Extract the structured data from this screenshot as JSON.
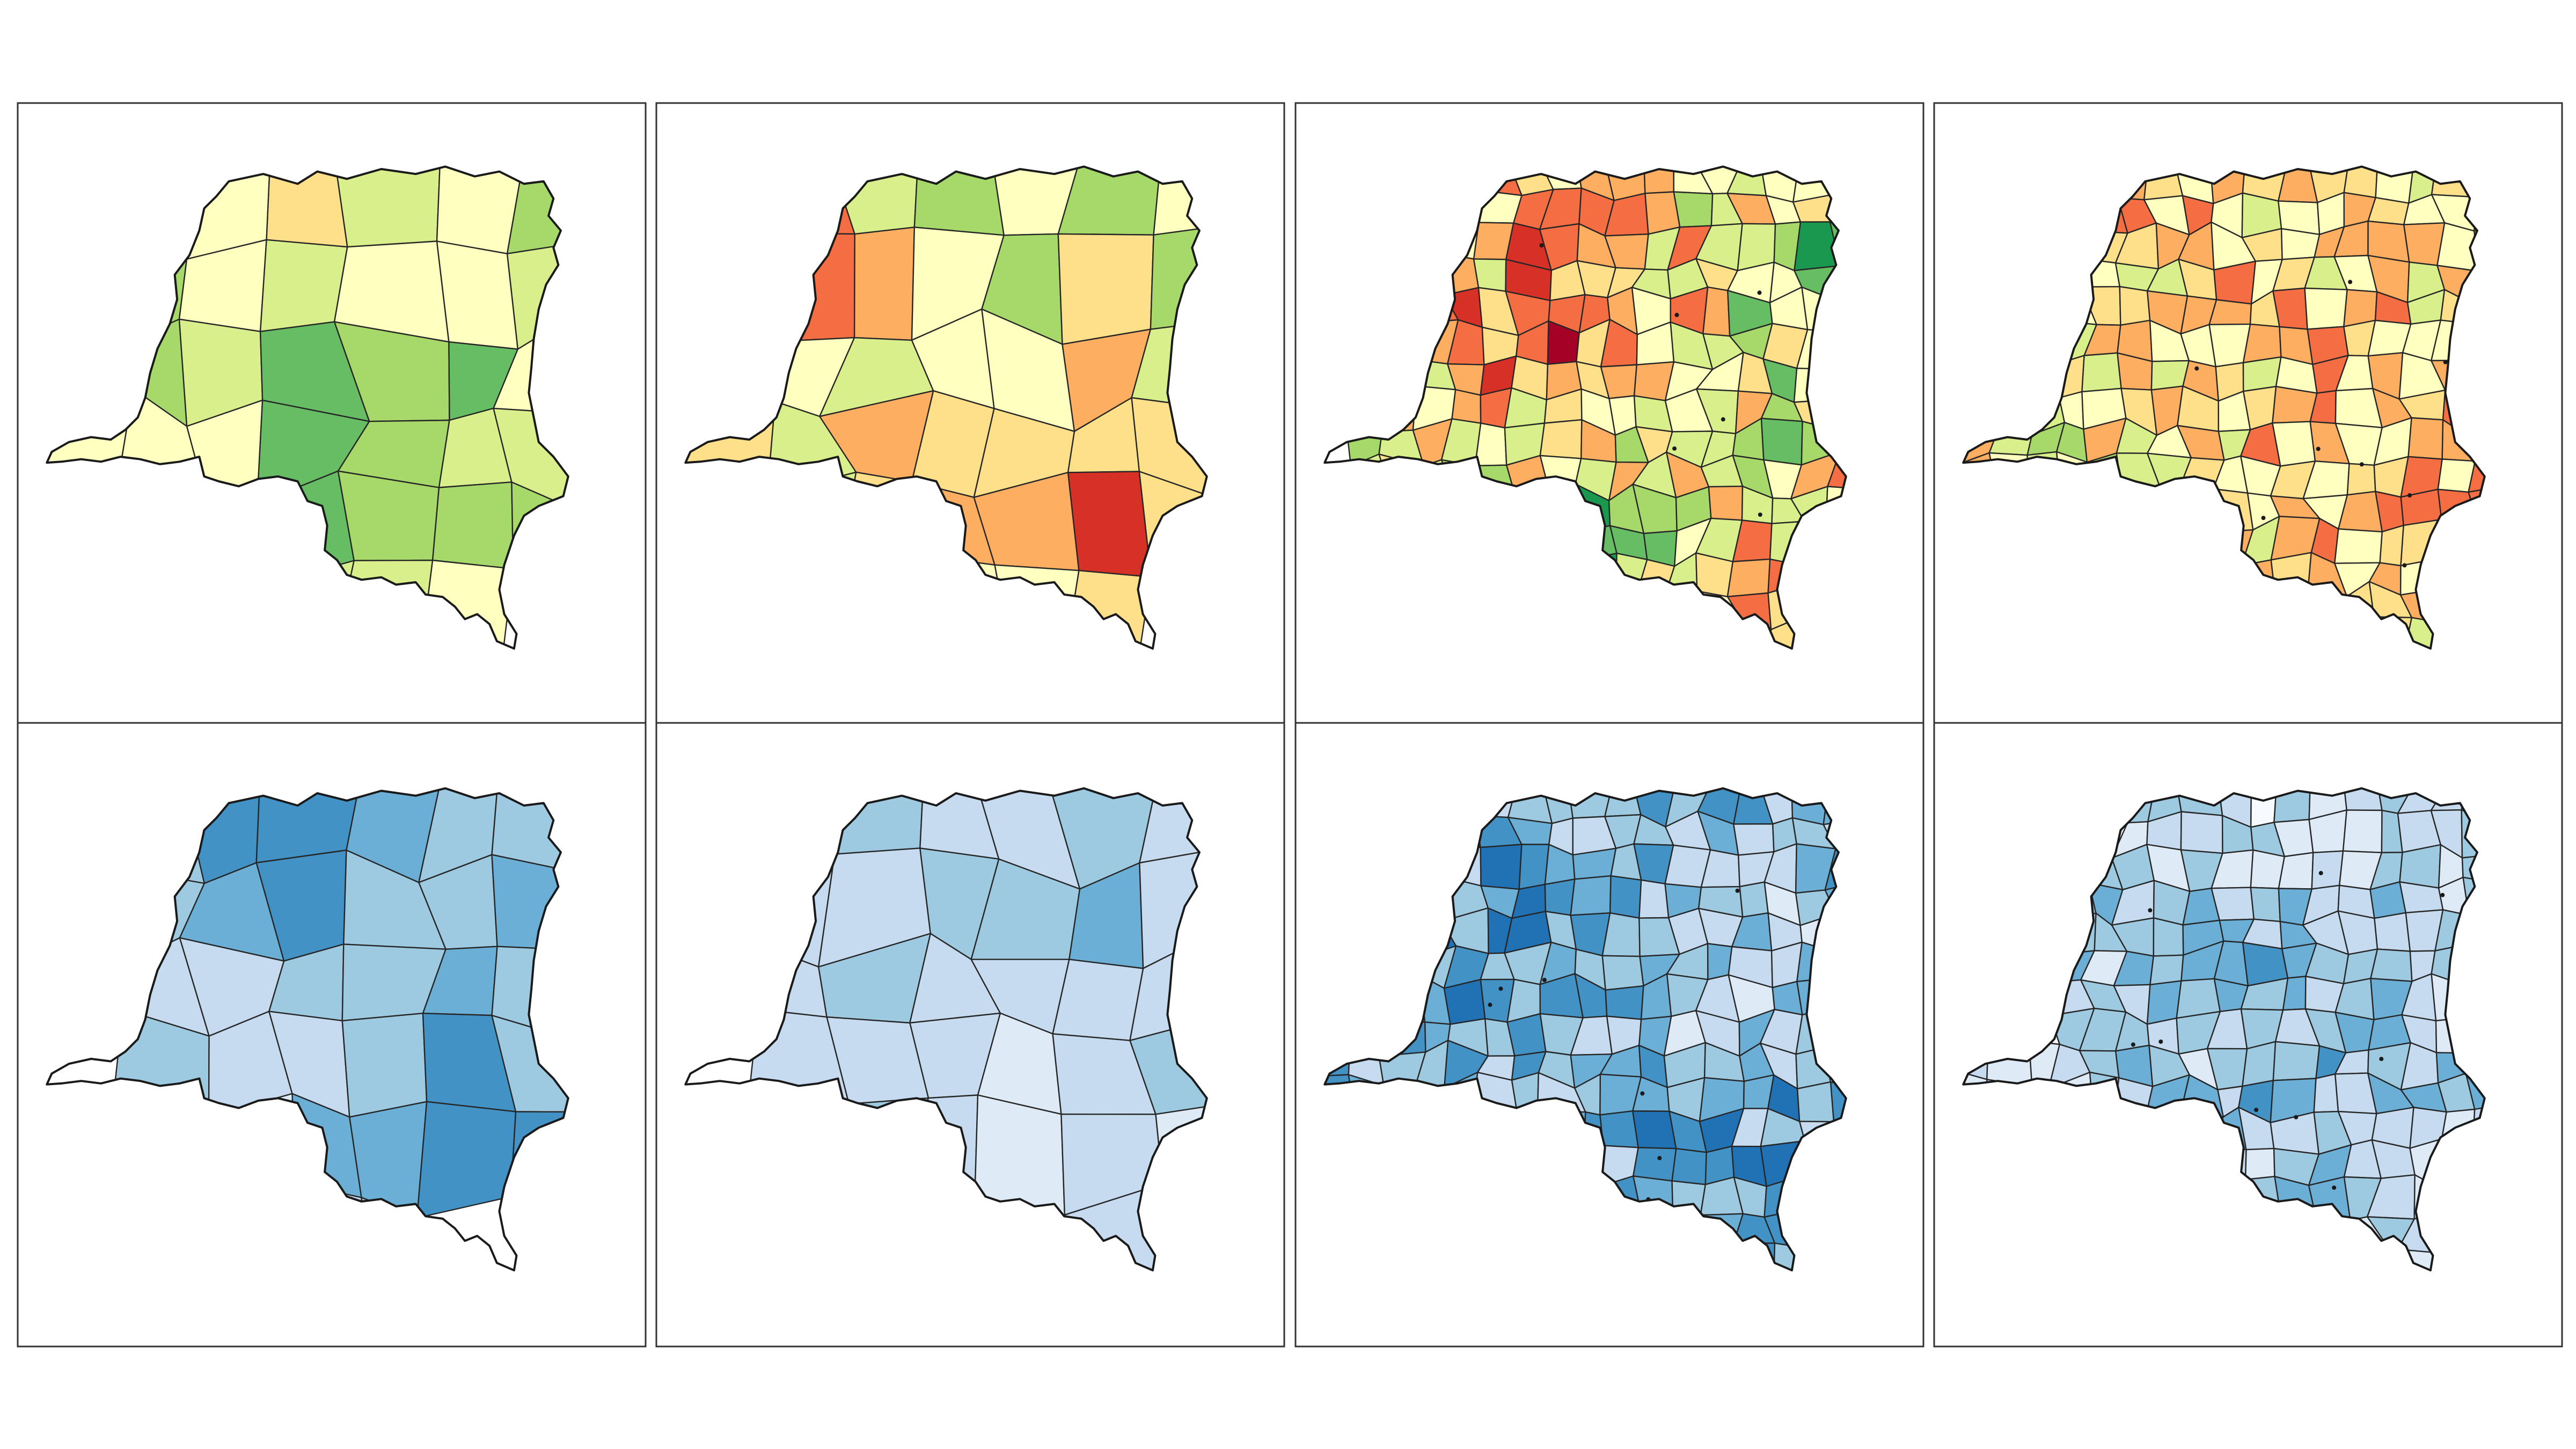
{
  "figure": {
    "layout": {
      "rows": 2,
      "cols": 4
    },
    "rows": [
      {
        "name": "top-row",
        "palette": "red-yellow-green",
        "colors": [
          "#a50026",
          "#d73027",
          "#f46d43",
          "#fdae61",
          "#fee08b",
          "#ffffbf",
          "#d9ef8b",
          "#a6d96a",
          "#66bd63",
          "#1a9850",
          "#006837"
        ]
      },
      {
        "name": "bottom-row",
        "palette": "blues",
        "colors": [
          "#f7fbff",
          "#deebf7",
          "#c6dbef",
          "#9ecae1",
          "#6baed6",
          "#4292c6",
          "#2171b5",
          "#08519c"
        ]
      }
    ],
    "panels": [
      {
        "row": 0,
        "col": 0,
        "grid": "coarse",
        "seed": 11,
        "range": [
          3,
          9
        ],
        "bias": 0.55
      },
      {
        "row": 0,
        "col": 1,
        "grid": "coarse",
        "seed": 23,
        "range": [
          1,
          8
        ],
        "bias": 0.45
      },
      {
        "row": 0,
        "col": 2,
        "grid": "fine",
        "seed": 37,
        "range": [
          0,
          10
        ],
        "bias": 0.5
      },
      {
        "row": 0,
        "col": 3,
        "grid": "fine",
        "seed": 41,
        "range": [
          1,
          7
        ],
        "bias": 0.35
      },
      {
        "row": 1,
        "col": 0,
        "grid": "coarse",
        "seed": 53,
        "range": [
          1,
          6
        ],
        "bias": 0.45
      },
      {
        "row": 1,
        "col": 1,
        "grid": "coarse",
        "seed": 67,
        "range": [
          0,
          4
        ],
        "bias": 0.5
      },
      {
        "row": 1,
        "col": 2,
        "grid": "fine",
        "seed": 79,
        "range": [
          0,
          7
        ],
        "bias": 0.4
      },
      {
        "row": 1,
        "col": 3,
        "grid": "fine",
        "seed": 83,
        "range": [
          0,
          5
        ],
        "bias": 0.35
      }
    ]
  }
}
